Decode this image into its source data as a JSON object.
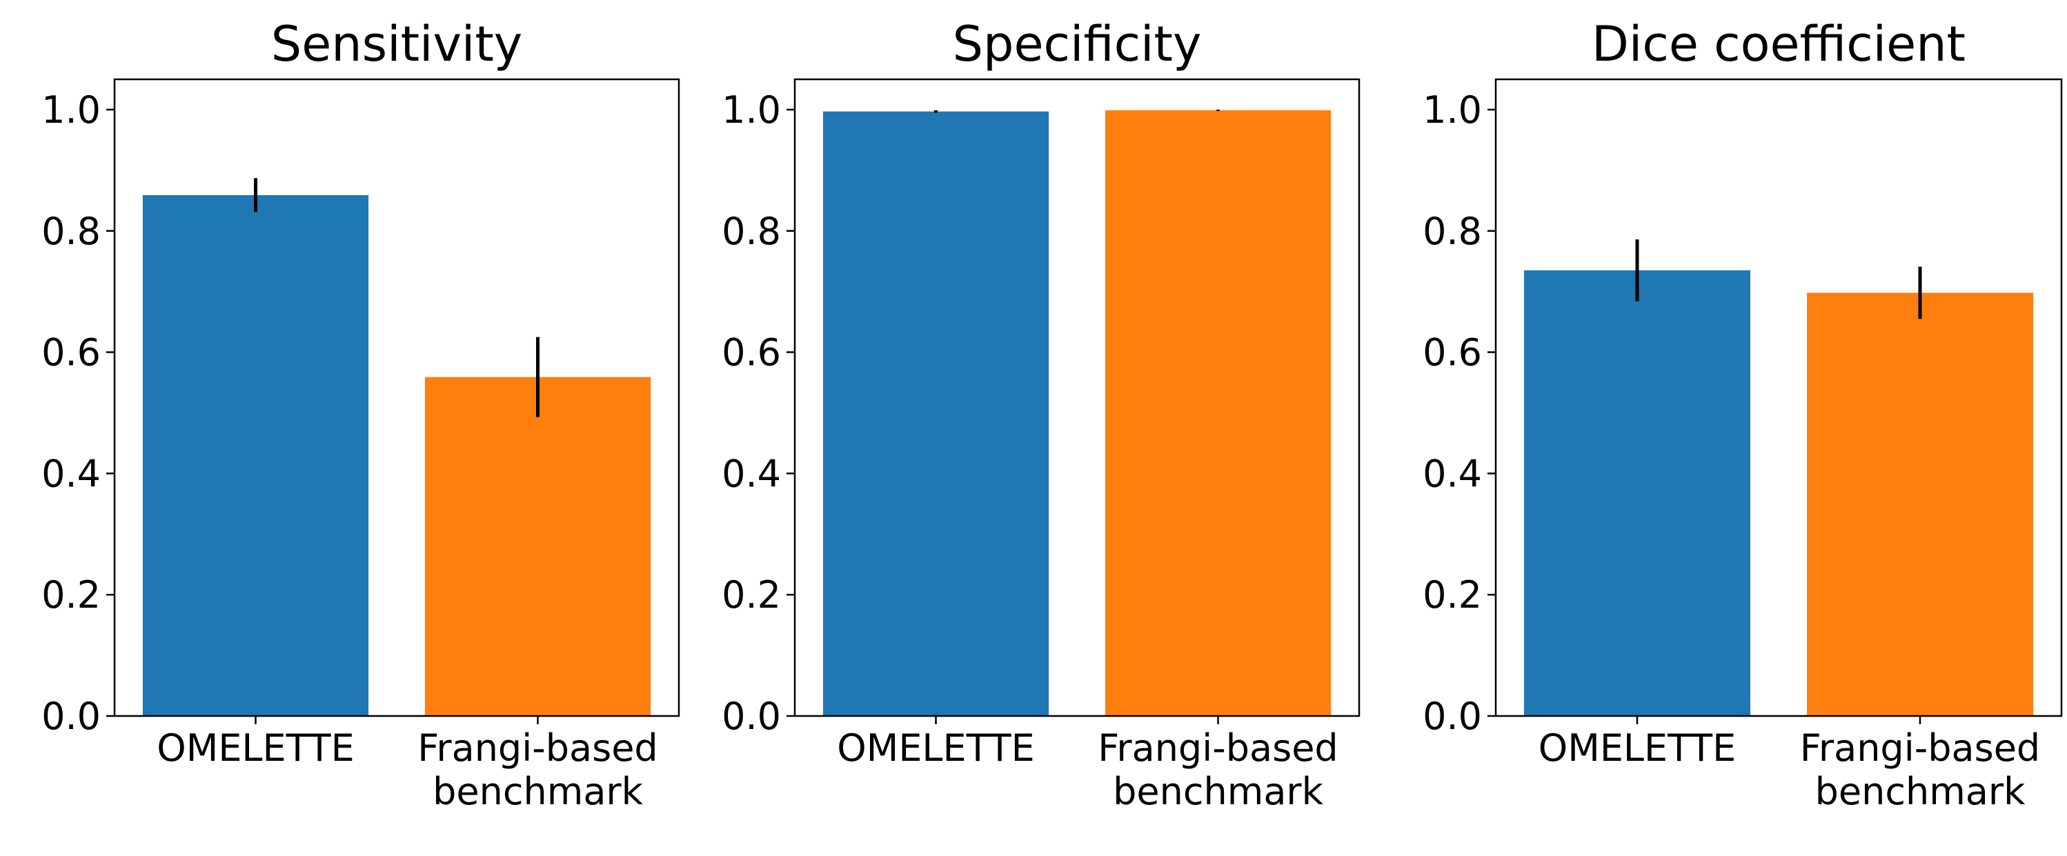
{
  "chart_data": [
    {
      "type": "bar",
      "title": "Sensitivity",
      "categories": [
        "OMELETTE",
        "Frangi-based\nbenchmark"
      ],
      "values": [
        0.859,
        0.559
      ],
      "errors": [
        0.028,
        0.066
      ],
      "colors": [
        "#1f77b4",
        "#ff7f0e"
      ],
      "ylim": [
        0,
        1.05
      ],
      "yticks": [
        "0.0",
        "0.2",
        "0.4",
        "0.6",
        "0.8",
        "1.0"
      ],
      "grid": false
    },
    {
      "type": "bar",
      "title": "Specificity",
      "categories": [
        "OMELETTE",
        "Frangi-based\nbenchmark"
      ],
      "values": [
        0.997,
        0.999
      ],
      "errors": [
        0.002,
        0.001
      ],
      "colors": [
        "#1f77b4",
        "#ff7f0e"
      ],
      "ylim": [
        0,
        1.05
      ],
      "yticks": [
        "0.0",
        "0.2",
        "0.4",
        "0.6",
        "0.8",
        "1.0"
      ],
      "grid": false
    },
    {
      "type": "bar",
      "title": "Dice coefficient",
      "categories": [
        "OMELETTE",
        "Frangi-based\nbenchmark"
      ],
      "values": [
        0.735,
        0.698
      ],
      "errors": [
        0.051,
        0.043
      ],
      "colors": [
        "#1f77b4",
        "#ff7f0e"
      ],
      "ylim": [
        0,
        1.05
      ],
      "yticks": [
        "0.0",
        "0.2",
        "0.4",
        "0.6",
        "0.8",
        "1.0"
      ],
      "grid": false
    }
  ]
}
